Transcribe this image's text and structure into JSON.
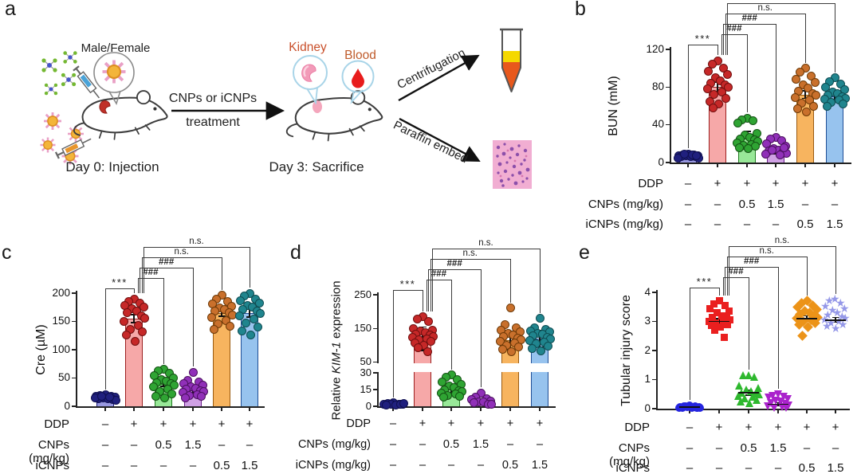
{
  "panels": {
    "a": "a",
    "b": "b",
    "c": "c",
    "d": "d",
    "e": "e"
  },
  "panel_a": {
    "male_female": "Male/Female",
    "treatment_line1": "CNPs or iCNPs",
    "treatment_line2": "treatment",
    "day0": "Day 0: Injection",
    "day3": "Day 3: Sacrifice",
    "kidney": "Kidney",
    "blood": "Blood",
    "centrifugation": "Centrifugation",
    "paraffin": "Paraffin embed",
    "label_colors": {
      "kidney": "#c94f2a",
      "blood": "#bf5b2b"
    }
  },
  "xaxis": {
    "row_labels": [
      "DDP",
      "CNPs (mg/kg)",
      "iCNPs (mg/kg)"
    ],
    "rows": [
      [
        "–",
        "+",
        "+",
        "+",
        "+",
        "+"
      ],
      [
        "–",
        "–",
        "0.5",
        "1.5",
        "–",
        "–"
      ],
      [
        "–",
        "–",
        "–",
        "–",
        "0.5",
        "1.5"
      ]
    ]
  },
  "significance": [
    {
      "from": 0,
      "to": 1,
      "label": "***"
    },
    {
      "from": 1,
      "to": 2,
      "label": "###"
    },
    {
      "from": 1,
      "to": 3,
      "label": "###"
    },
    {
      "from": 1,
      "to": 4,
      "label": "n.s."
    },
    {
      "from": 1,
      "to": 5,
      "label": "n.s."
    }
  ],
  "chart_data": [
    {
      "id": "b",
      "type": "bar",
      "ylabel": "BUN (mM)",
      "ylim": [
        0,
        120
      ],
      "yticks": [
        0,
        40,
        80,
        120
      ],
      "categories": [
        "–/–/–",
        "+/–/–",
        "+/0.5/–",
        "+/1.5/–",
        "+/–/0.5",
        "+/–/1.5"
      ],
      "bar_means": [
        7,
        80,
        29,
        11,
        72,
        70
      ],
      "sem": [
        1,
        5,
        4,
        2,
        4,
        3
      ],
      "points": [
        [
          9,
          8,
          8,
          7,
          7,
          7,
          6,
          6,
          6,
          5,
          5,
          8,
          9,
          7
        ],
        [
          108,
          104,
          100,
          97,
          93,
          90,
          87,
          84,
          82,
          80,
          78,
          75,
          72,
          68,
          65,
          62,
          58
        ],
        [
          47,
          45,
          44,
          42,
          31,
          29,
          27,
          25,
          24,
          22,
          21,
          19,
          18,
          17,
          16,
          15
        ],
        [
          27,
          25,
          23,
          20,
          17,
          15,
          13,
          12,
          11,
          10,
          9,
          8,
          13,
          16
        ],
        [
          100,
          96,
          92,
          88,
          85,
          82,
          79,
          76,
          73,
          71,
          69,
          66,
          63,
          60,
          57,
          54
        ],
        [
          90,
          86,
          83,
          80,
          77,
          75,
          73,
          71,
          70,
          68,
          67,
          66,
          64,
          62,
          60
        ]
      ],
      "bar_fill": [
        "#9898e0",
        "#f6a8a8",
        "#98e898",
        "#cfa0e4",
        "#f7b45f",
        "#97c3ee"
      ],
      "bar_edge": [
        "#1a1a78",
        "#9c1f1f",
        "#1f7a1f",
        "#6a1b8a",
        "#9a5a10",
        "#1f4e96"
      ],
      "dot_fill": [
        "#20207e",
        "#c62828",
        "#2fa433",
        "#9030b8",
        "#c9702c",
        "#20858e"
      ],
      "dot_edge": [
        "#101050",
        "#701010",
        "#145214",
        "#4c1060",
        "#6e3a08",
        "#0e4c52"
      ]
    },
    {
      "id": "c",
      "type": "bar",
      "ylabel": "Cre (µM)",
      "ylim": [
        0,
        200
      ],
      "yticks": [
        0,
        50,
        100,
        150,
        200
      ],
      "categories": [
        "–/–/–",
        "+/–/–",
        "+/0.5/–",
        "+/1.5/–",
        "+/–/0.5",
        "+/–/1.5"
      ],
      "bar_means": [
        15,
        155,
        40,
        28,
        165,
        165
      ],
      "sem": [
        2,
        7,
        5,
        4,
        6,
        7
      ],
      "points": [
        [
          20,
          19,
          18,
          17,
          16,
          15,
          14,
          13,
          12,
          11,
          15,
          16,
          18
        ],
        [
          190,
          185,
          182,
          178,
          175,
          172,
          168,
          165,
          160,
          156,
          150,
          143,
          136,
          131,
          126,
          115
        ],
        [
          65,
          62,
          58,
          54,
          50,
          47,
          44,
          42,
          40,
          37,
          34,
          30,
          26,
          22,
          18,
          15
        ],
        [
          60,
          46,
          43,
          40,
          37,
          35,
          32,
          30,
          28,
          26,
          24,
          21,
          19,
          17,
          15
        ],
        [
          196,
          190,
          185,
          181,
          177,
          174,
          171,
          168,
          165,
          161,
          157,
          152,
          146,
          141,
          136
        ],
        [
          200,
          195,
          190,
          186,
          182,
          178,
          175,
          171,
          168,
          164,
          160,
          154,
          147,
          140,
          133,
          126
        ]
      ],
      "bar_fill": [
        "#9898e0",
        "#f6a8a8",
        "#98e898",
        "#cfa0e4",
        "#f7b45f",
        "#97c3ee"
      ],
      "bar_edge": [
        "#1a1a78",
        "#9c1f1f",
        "#1f7a1f",
        "#6a1b8a",
        "#9a5a10",
        "#1f4e96"
      ],
      "dot_fill": [
        "#20207e",
        "#c62828",
        "#2fa433",
        "#9030b8",
        "#c9702c",
        "#20858e"
      ],
      "dot_edge": [
        "#101050",
        "#701010",
        "#145214",
        "#4c1060",
        "#6e3a08",
        "#0e4c52"
      ]
    },
    {
      "id": "d",
      "type": "bar",
      "ylabel": "Relative KIM-1 expression",
      "ylabel_parts": [
        "Relative ",
        "KIM-1",
        " expression"
      ],
      "ylim": [
        0,
        250
      ],
      "yticks": [
        0,
        15,
        30,
        50,
        150,
        250
      ],
      "segments": [
        {
          "range": [
            0,
            30
          ],
          "frac": [
            0,
            0.3
          ]
        },
        {
          "range": [
            50,
            250
          ],
          "frac": [
            0.395,
            1
          ]
        }
      ],
      "categories": [
        "–/–/–",
        "+/–/–",
        "+/0.5/–",
        "+/1.5/–",
        "+/–/0.5",
        "+/–/1.5"
      ],
      "bar_means": [
        1.5,
        120,
        15,
        4,
        115,
        120
      ],
      "sem": [
        0.5,
        35,
        4,
        1.5,
        28,
        25
      ],
      "points": [
        [
          3,
          2.5,
          2,
          2,
          1.5,
          1.5,
          1,
          1,
          2,
          2.5
        ],
        [
          185,
          178,
          172,
          150,
          146,
          142,
          138,
          134,
          130,
          127,
          124,
          120,
          116,
          112,
          106,
          100,
          92,
          80
        ],
        [
          28,
          26,
          24,
          22,
          20,
          18,
          17,
          15,
          14,
          13,
          12,
          11,
          10,
          9,
          8
        ],
        [
          12,
          8,
          7,
          6,
          5,
          4,
          4,
          3,
          2,
          2
        ],
        [
          210,
          162,
          152,
          146,
          141,
          136,
          131,
          126,
          121,
          117,
          112,
          107,
          101,
          95,
          88,
          80
        ],
        [
          180,
          152,
          147,
          143,
          140,
          136,
          132,
          128,
          124,
          120,
          115,
          110,
          104,
          97,
          90,
          83
        ]
      ],
      "bar_fill": [
        "#9898e0",
        "#f6a8a8",
        "#98e898",
        "#cfa0e4",
        "#f7b45f",
        "#97c3ee"
      ],
      "bar_edge": [
        "#1a1a78",
        "#9c1f1f",
        "#1f7a1f",
        "#6a1b8a",
        "#9a5a10",
        "#1f4e96"
      ],
      "dot_fill": [
        "#20207e",
        "#c62828",
        "#2fa433",
        "#9030b8",
        "#c9702c",
        "#20858e"
      ],
      "dot_edge": [
        "#101050",
        "#701010",
        "#145214",
        "#4c1060",
        "#6e3a08",
        "#0e4c52"
      ]
    },
    {
      "id": "e",
      "type": "scatter",
      "ylabel": "Tubular injury score",
      "ylim": [
        0,
        4
      ],
      "yticks": [
        0,
        1,
        2,
        3,
        4
      ],
      "categories": [
        "–/–/–",
        "+/–/–",
        "+/0.5/–",
        "+/1.5/–",
        "+/–/0.5",
        "+/–/1.5"
      ],
      "means": [
        0.05,
        3.0,
        0.55,
        0.15,
        3.1,
        3.05
      ],
      "sem": [
        0.03,
        0.1,
        0.08,
        0.05,
        0.1,
        0.08
      ],
      "points": [
        [
          0.1,
          0.08,
          0.08,
          0.06,
          0.05,
          0.05,
          0.04,
          0.04,
          0.03,
          0.02,
          0.02,
          0.05,
          0.07,
          0.03
        ],
        [
          3.7,
          3.6,
          3.55,
          3.45,
          3.35,
          3.3,
          3.2,
          3.15,
          3.1,
          3.05,
          3.0,
          3.0,
          2.95,
          2.9,
          2.85,
          2.8,
          2.7,
          2.45
        ],
        [
          1.15,
          1.15,
          1.1,
          0.8,
          0.72,
          0.65,
          0.6,
          0.55,
          0.52,
          0.48,
          0.44,
          0.4,
          0.35,
          0.3,
          0.25,
          0.2
        ],
        [
          0.5,
          0.45,
          0.42,
          0.38,
          0.33,
          0.28,
          0.24,
          0.2,
          0.16,
          0.12,
          0.08,
          0.05,
          0.03,
          0.02
        ],
        [
          3.7,
          3.62,
          3.55,
          3.48,
          3.42,
          3.36,
          3.3,
          3.25,
          3.2,
          3.15,
          3.1,
          3.05,
          3.0,
          2.95,
          2.9,
          2.82,
          2.5
        ],
        [
          3.75,
          3.68,
          3.6,
          3.5,
          3.42,
          3.35,
          3.28,
          3.2,
          3.15,
          3.08,
          3.02,
          2.97,
          2.92,
          2.87,
          2.8,
          2.72
        ]
      ],
      "markers": [
        "circle",
        "square",
        "triangle-up",
        "triangle-down",
        "diamond",
        "star"
      ],
      "marker_colors": [
        "#2525df",
        "#ea1f1f",
        "#2eb82e",
        "#aa22cc",
        "#ec9318",
        "#9598e8"
      ]
    }
  ]
}
